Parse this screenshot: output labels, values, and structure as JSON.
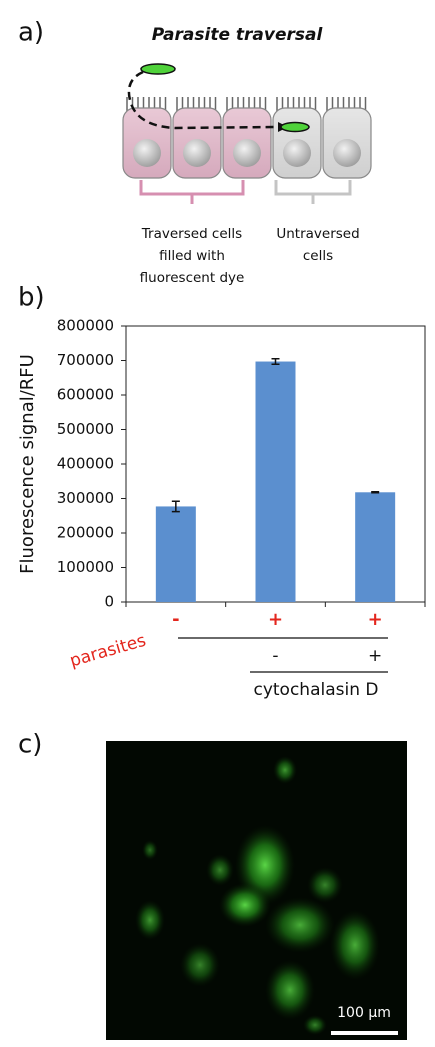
{
  "panel_a": {
    "label": "a)",
    "title": "Parasite traversal",
    "traversed_label": [
      "Traversed cells",
      "filled with",
      "fluorescent dye"
    ],
    "untraversed_label": [
      "Untraversed",
      "cells"
    ]
  },
  "chart_data": {
    "type": "bar",
    "label": "b)",
    "y_label": "Fluorescence signal/RFU",
    "categories": [
      "-",
      "+",
      "+"
    ],
    "category_color": "#e3261d",
    "row_label": "parasites",
    "row2": {
      "label": "cytochalasin D",
      "categories": [
        null,
        "-",
        "+"
      ]
    },
    "values": [
      277000,
      697000,
      318000
    ],
    "errors": [
      15000,
      8000,
      1500
    ],
    "color": "#5b8fcf",
    "ylim": [
      0,
      800000
    ],
    "yticks": [
      0,
      100000,
      200000,
      300000,
      400000,
      500000,
      600000,
      700000,
      800000
    ]
  },
  "panel_c": {
    "label": "c)",
    "scale_bar_label": "100 μm"
  }
}
